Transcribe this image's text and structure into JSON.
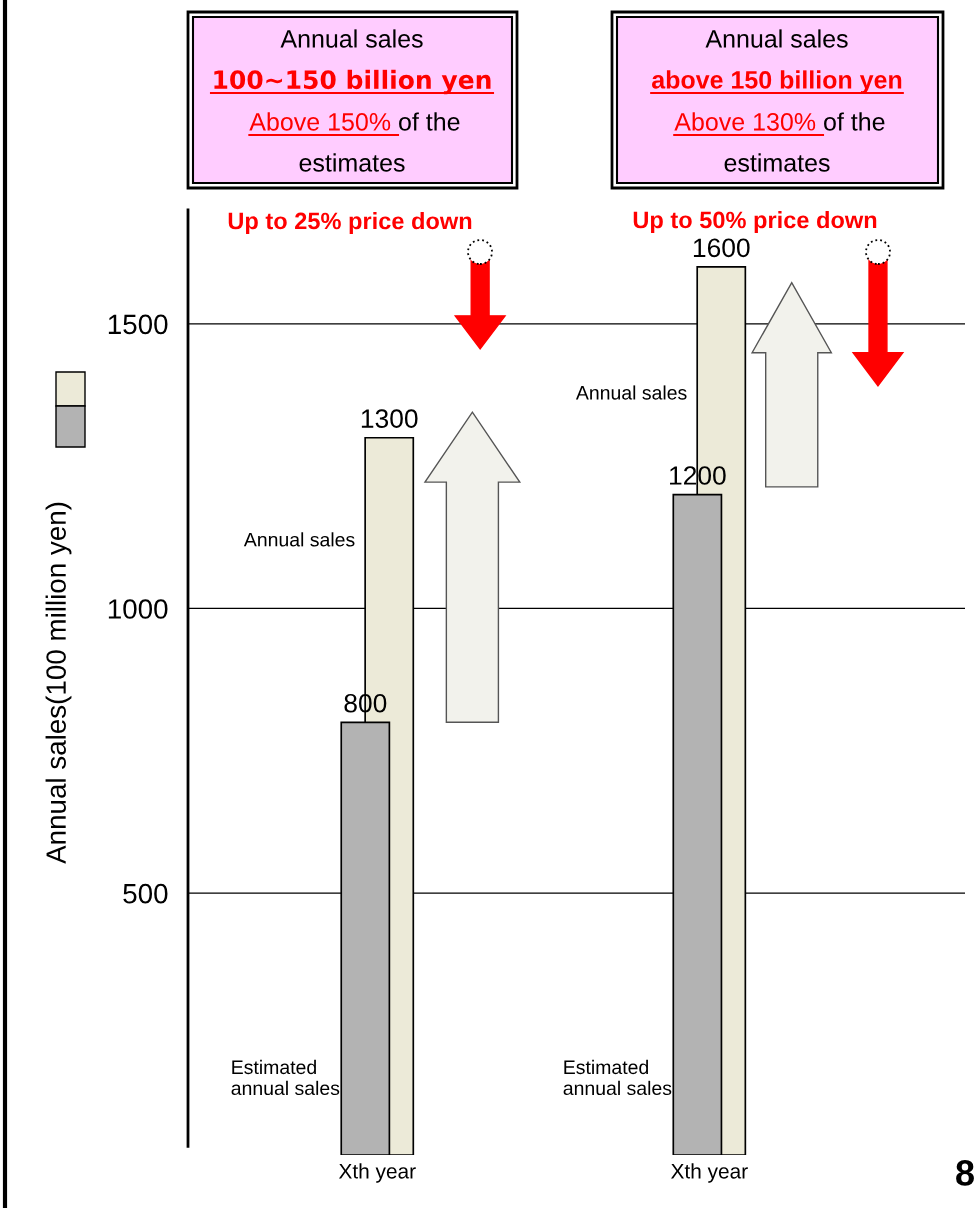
{
  "chart_data": {
    "type": "bar",
    "ylabel": "Annual sales(100 million yen)",
    "categories": [
      "Xth year",
      "Xth year"
    ],
    "series": [
      {
        "name": "Annual sales",
        "color": "#ecead8",
        "values": [
          1300,
          1600
        ]
      },
      {
        "name": "Estimated\nannual sales",
        "color": "#b3b3b3",
        "values": [
          800,
          1200
        ]
      }
    ],
    "ylim": [
      40,
      1700
    ],
    "yticks": [
      500,
      1000,
      1500
    ],
    "grid": "y",
    "data_labels": true,
    "annotations": [
      "Annual sales",
      "100∼150 billion yen",
      "Above 150% ",
      "of the",
      "estimates",
      "Annual sales",
      "above 150 billion yen",
      "Above 130% ",
      "of the",
      "estimates",
      "Up to 25% price down",
      "Up to 50% price down",
      "8"
    ]
  }
}
